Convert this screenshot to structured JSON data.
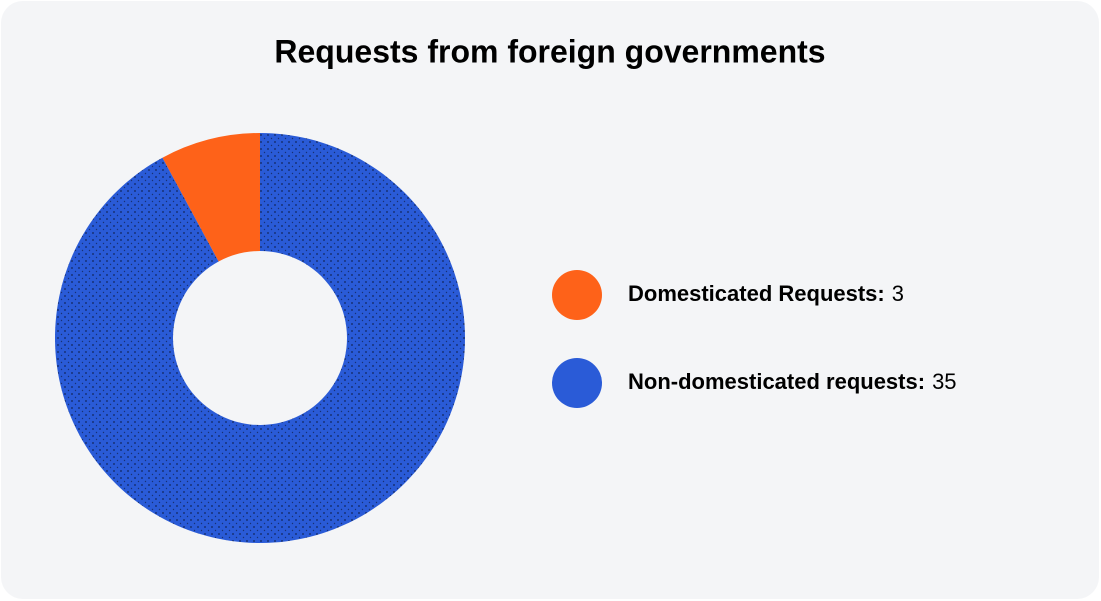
{
  "chart_data": {
    "type": "donut",
    "title": "Requests from foreign governments",
    "categories": [
      "Domesticated Requests:",
      "Non-domesticated requests:"
    ],
    "values": [
      3,
      35
    ],
    "colors": [
      "#fe6219",
      "#2a5bd7"
    ]
  }
}
